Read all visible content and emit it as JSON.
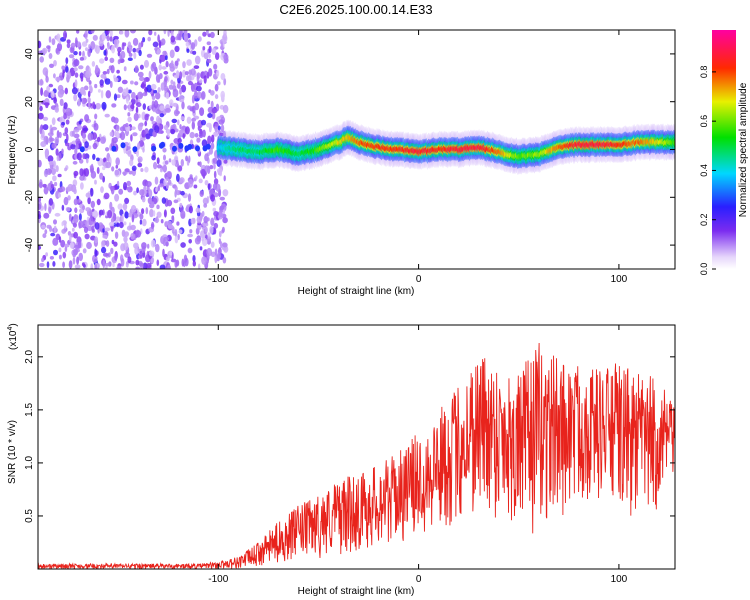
{
  "figure": {
    "title": "C2E6.2025.100.00.14.E33"
  },
  "chart_data": [
    {
      "type": "heatmap",
      "title": "C2E6.2025.100.00.14.E33",
      "xlabel": "Height of straight line (km)",
      "ylabel": "Frequency (Hz)",
      "xlim": [
        -190,
        128
      ],
      "ylim": [
        -50,
        50
      ],
      "x_ticks": [
        -100,
        0,
        100
      ],
      "x_tick_labels": [
        "-100",
        "0",
        "100"
      ],
      "y_ticks": [
        -40,
        -20,
        0,
        20,
        40
      ],
      "y_tick_labels": [
        "-40",
        "-20",
        "0",
        "20",
        "40"
      ],
      "colorbar": {
        "label": "Normalized spectral amplitude",
        "range": [
          0,
          0.97
        ],
        "ticks": [
          0,
          0.2,
          0.4,
          0.6,
          0.8
        ],
        "tick_labels": [
          "0.0",
          "0.2",
          "0.4",
          "0.6",
          "0.8"
        ],
        "colormap": "rainbow (white-violet-blue-cyan-green-yellow-red-magenta)"
      },
      "noise_region_x": [
        -190,
        -100
      ],
      "ridge": {
        "description": "dominant spectral line near 0 Hz",
        "x": [
          -100,
          -90,
          -80,
          -70,
          -60,
          -50,
          -40,
          -35,
          -30,
          -20,
          -10,
          0,
          10,
          20,
          30,
          40,
          50,
          60,
          70,
          80,
          90,
          100,
          110,
          120,
          128
        ],
        "y": [
          1,
          0,
          -1,
          0,
          -2,
          0,
          3,
          5,
          3,
          1,
          0,
          -1,
          0,
          0,
          1,
          -1,
          -3,
          -2,
          1,
          2,
          2,
          2,
          3,
          3,
          3
        ],
        "amplitude": [
          0.4,
          0.5,
          0.5,
          0.6,
          0.5,
          0.6,
          0.7,
          0.75,
          0.8,
          0.85,
          0.85,
          0.9,
          0.85,
          0.9,
          0.9,
          0.8,
          0.6,
          0.65,
          0.8,
          0.9,
          0.9,
          0.85,
          0.8,
          0.7,
          0.6
        ]
      },
      "grid": false
    },
    {
      "type": "line",
      "xlabel": "Height of straight line (km)",
      "ylabel": "SNR (10 * v/v)",
      "y_scale_label": "(x10",
      "y_scale_exp": "4",
      "y_scale_close": ")",
      "xlim": [
        -190,
        128
      ],
      "ylim": [
        0,
        2.3
      ],
      "x_ticks": [
        -100,
        0,
        100
      ],
      "x_tick_labels": [
        "-100",
        "0",
        "100"
      ],
      "y_ticks": [
        0.5,
        1.0,
        1.5,
        2.0
      ],
      "y_tick_labels": [
        "0.5",
        "1.0",
        "1.5",
        "2.0"
      ],
      "color": "#e8231c",
      "series": [
        {
          "envelope_x": [
            -190,
            -110,
            -100,
            -90,
            -80,
            -70,
            -60,
            -50,
            -40,
            -30,
            -20,
            -10,
            0,
            10,
            20,
            30,
            40,
            50,
            60,
            70,
            80,
            90,
            100,
            110,
            120,
            128
          ],
          "envelope_upper": [
            0.05,
            0.05,
            0.07,
            0.12,
            0.25,
            0.45,
            0.6,
            0.7,
            0.85,
            0.9,
            1.0,
            1.1,
            1.3,
            1.5,
            1.75,
            2.1,
            1.95,
            1.85,
            2.15,
            2.0,
            1.95,
            1.9,
            1.95,
            1.85,
            1.8,
            1.5
          ],
          "envelope_lower": [
            0.0,
            0.0,
            0.0,
            0.0,
            0.02,
            0.05,
            0.08,
            0.1,
            0.12,
            0.15,
            0.2,
            0.25,
            0.3,
            0.35,
            0.4,
            0.5,
            0.45,
            0.35,
            0.3,
            0.45,
            0.6,
            0.65,
            0.5,
            0.4,
            0.5,
            0.9
          ]
        }
      ],
      "grid": false
    }
  ]
}
